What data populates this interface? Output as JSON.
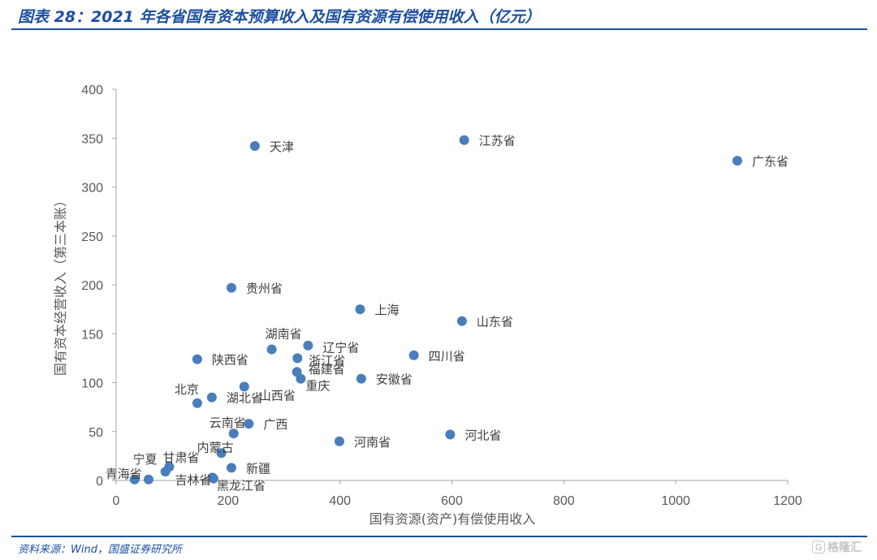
{
  "header": {
    "title": "图表 28：2021 年各省国有资本预算收入及国有资源有偿使用收入（亿元）"
  },
  "footer": {
    "source": "资料来源：Wind，国盛证券研究所",
    "watermark": "格隆汇",
    "watermark_icon": "g-logo-icon"
  },
  "chart_data": {
    "type": "scatter",
    "title": "",
    "xlabel": "国有资源(资产)有偿使用收入",
    "ylabel": "国有资本经营收入（第三本账）",
    "xlim": [
      0,
      1200
    ],
    "ylim": [
      0,
      400
    ],
    "x_ticks": [
      "0",
      "200",
      "400",
      "600",
      "800",
      "1000",
      "1200"
    ],
    "y_ticks": [
      "0",
      "50",
      "100",
      "150",
      "200",
      "250",
      "300",
      "350",
      "400"
    ],
    "grid": false,
    "marker_color": "#4a7ebb",
    "points": [
      {
        "label": "天津",
        "x": 248,
        "y": 342
      },
      {
        "label": "江苏省",
        "x": 622,
        "y": 348
      },
      {
        "label": "广东省",
        "x": 1110,
        "y": 327
      },
      {
        "label": "贵州省",
        "x": 206,
        "y": 197
      },
      {
        "label": "上海",
        "x": 436,
        "y": 175
      },
      {
        "label": "山东省",
        "x": 618,
        "y": 163
      },
      {
        "label": "湖南省",
        "x": 278,
        "y": 134
      },
      {
        "label": "辽宁省",
        "x": 343,
        "y": 138
      },
      {
        "label": "四川省",
        "x": 532,
        "y": 128
      },
      {
        "label": "陕西省",
        "x": 145,
        "y": 124
      },
      {
        "label": "浙江省",
        "x": 324,
        "y": 125
      },
      {
        "label": "福建省",
        "x": 323,
        "y": 111
      },
      {
        "label": "重庆",
        "x": 330,
        "y": 104
      },
      {
        "label": "安徽省",
        "x": 438,
        "y": 104
      },
      {
        "label": "山西省",
        "x": 229,
        "y": 96
      },
      {
        "label": "湖北省",
        "x": 171,
        "y": 85
      },
      {
        "label": "北京",
        "x": 145,
        "y": 79
      },
      {
        "label": "云南省",
        "x": 210,
        "y": 48
      },
      {
        "label": "广西",
        "x": 237,
        "y": 58
      },
      {
        "label": "河南省",
        "x": 399,
        "y": 40
      },
      {
        "label": "河北省",
        "x": 597,
        "y": 47
      },
      {
        "label": "内蒙古",
        "x": 188,
        "y": 28
      },
      {
        "label": "甘肃省",
        "x": 95,
        "y": 14
      },
      {
        "label": "宁夏",
        "x": 88,
        "y": 9
      },
      {
        "label": "新疆",
        "x": 206,
        "y": 13
      },
      {
        "label": "吉林省",
        "x": 172,
        "y": 3
      },
      {
        "label": "黑龙江省",
        "x": 174,
        "y": 2
      },
      {
        "label": "青海省",
        "x": 33,
        "y": 1
      },
      {
        "label": "海南",
        "x": 58,
        "y": 1
      }
    ]
  }
}
